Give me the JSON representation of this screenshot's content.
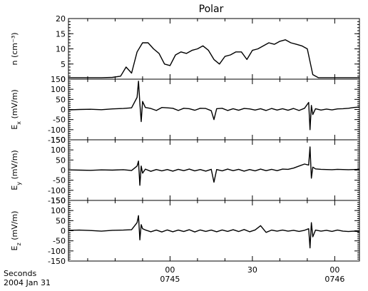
{
  "chart_data": {
    "type": "line",
    "title": "Polar",
    "x_ticks": [
      {
        "top": "00",
        "bottom": "0745",
        "t": 0
      },
      {
        "top": "30",
        "bottom": "",
        "t": 30
      },
      {
        "top": "00",
        "bottom": "0746",
        "t": 60
      }
    ],
    "x_corner_label_top": "Seconds",
    "x_corner_label_bottom": "2004 Jan 31",
    "xlim": [
      -37,
      69
    ],
    "panels": [
      {
        "id": "n",
        "ylabel_main": "n",
        "ylabel_unit": "(cm⁻³)",
        "ylim": [
          0,
          20
        ],
        "yticks": [
          0,
          5,
          10,
          15,
          20
        ],
        "minor_step": 1,
        "series": {
          "name": "n",
          "x": [
            -37,
            -30,
            -25,
            -21,
            -18,
            -16,
            -14,
            -12,
            -10,
            -8,
            -6,
            -4,
            -2,
            0,
            2,
            4,
            6,
            8,
            10,
            12,
            14,
            16,
            18,
            20,
            22,
            24,
            26,
            28,
            30,
            32,
            34,
            36,
            38,
            40,
            42,
            44,
            46,
            48,
            50,
            52,
            54,
            55,
            57,
            59,
            61,
            63,
            65,
            67,
            69
          ],
          "y": [
            0.5,
            0.5,
            0.5,
            0.6,
            1.0,
            4.0,
            2.0,
            9.0,
            12.0,
            12.0,
            10.0,
            8.5,
            5.0,
            4.5,
            8.0,
            9.0,
            8.5,
            9.5,
            10.0,
            11.0,
            9.5,
            6.5,
            5.0,
            7.5,
            8.0,
            9.0,
            9.0,
            6.5,
            9.5,
            10.0,
            11.0,
            12.0,
            11.5,
            12.5,
            13.0,
            12.0,
            11.5,
            11.0,
            10.0,
            1.5,
            0.5,
            0.5,
            0.5,
            0.5,
            0.5,
            0.5,
            0.5,
            0.5,
            0.5
          ]
        }
      },
      {
        "id": "ex",
        "ylabel_main": "E",
        "ylabel_sub": "x",
        "ylabel_unit": "(mV/m)",
        "ylim": [
          -150,
          150
        ],
        "yticks": [
          -150,
          -100,
          -50,
          0,
          50,
          100,
          150
        ],
        "minor_step": 10,
        "series": {
          "name": "Ex",
          "x": [
            -37,
            -33,
            -29,
            -25,
            -21,
            -17,
            -14,
            -12,
            -11.5,
            -11,
            -10.5,
            -10,
            -9,
            -7,
            -5,
            -3,
            -1,
            1,
            3,
            5,
            7,
            9,
            11,
            13,
            15,
            16,
            17,
            19,
            21,
            23,
            25,
            27,
            29,
            31,
            33,
            35,
            37,
            39,
            41,
            43,
            45,
            47,
            49,
            50.5,
            51,
            51.5,
            52,
            53,
            55,
            57,
            59,
            61,
            63,
            65,
            67,
            69
          ],
          "y": [
            -2,
            0,
            1,
            -1,
            3,
            5,
            8,
            60,
            140,
            30,
            -60,
            40,
            10,
            5,
            -5,
            10,
            8,
            6,
            -5,
            6,
            4,
            -4,
            6,
            5,
            -6,
            -50,
            4,
            6,
            -5,
            4,
            -4,
            5,
            3,
            -3,
            4,
            -5,
            5,
            -3,
            4,
            -4,
            5,
            -5,
            6,
            35,
            -100,
            20,
            -25,
            4,
            -3,
            2,
            -2,
            3,
            4,
            6,
            10,
            12
          ]
        }
      },
      {
        "id": "ey",
        "ylabel_main": "E",
        "ylabel_sub": "y",
        "ylabel_unit": "(mV/m)",
        "ylim": [
          -150,
          150
        ],
        "yticks": [
          -150,
          -100,
          -50,
          0,
          50,
          100,
          150
        ],
        "minor_step": 10,
        "series": {
          "name": "Ey",
          "x": [
            -37,
            -33,
            -29,
            -25,
            -21,
            -17,
            -14,
            -12,
            -11.5,
            -11,
            -10.5,
            -10,
            -9,
            -7,
            -5,
            -3,
            -1,
            1,
            3,
            5,
            7,
            9,
            11,
            13,
            15,
            16,
            17,
            19,
            21,
            23,
            25,
            27,
            29,
            31,
            33,
            35,
            37,
            39,
            41,
            43,
            45,
            47,
            49,
            50.5,
            51,
            51.5,
            52,
            53,
            55,
            57,
            59,
            61,
            63,
            65,
            67,
            69
          ],
          "y": [
            1,
            0,
            -1,
            1,
            0,
            2,
            -2,
            20,
            45,
            -75,
            20,
            -15,
            5,
            -6,
            3,
            -4,
            3,
            -5,
            4,
            -3,
            5,
            -4,
            3,
            -5,
            4,
            -60,
            3,
            -4,
            5,
            -3,
            4,
            -5,
            3,
            -4,
            5,
            -3,
            4,
            -3,
            5,
            4,
            10,
            20,
            30,
            25,
            115,
            -40,
            15,
            6,
            4,
            3,
            2,
            4,
            3,
            2,
            3,
            4
          ]
        }
      },
      {
        "id": "ez",
        "ylabel_main": "E",
        "ylabel_sub": "z",
        "ylabel_unit": "(mV/m)",
        "ylim": [
          -150,
          150
        ],
        "yticks": [
          -150,
          -100,
          -50,
          0,
          50,
          100,
          150
        ],
        "minor_step": 10,
        "series": {
          "name": "Ez",
          "x": [
            -37,
            -33,
            -29,
            -25,
            -21,
            -17,
            -14,
            -12,
            -11.5,
            -11,
            -10.5,
            -10,
            -9,
            -7,
            -5,
            -3,
            -1,
            1,
            3,
            5,
            7,
            9,
            11,
            13,
            15,
            17,
            19,
            21,
            23,
            25,
            27,
            29,
            31,
            33,
            35,
            37,
            39,
            41,
            43,
            45,
            47,
            49,
            50.5,
            51,
            51.5,
            52,
            53,
            55,
            57,
            59,
            61,
            63,
            65,
            67,
            69
          ],
          "y": [
            2,
            3,
            1,
            -2,
            2,
            3,
            5,
            40,
            75,
            -45,
            30,
            10,
            4,
            -5,
            3,
            -6,
            4,
            -5,
            3,
            -4,
            5,
            -6,
            4,
            -3,
            3,
            -5,
            4,
            -3,
            5,
            -4,
            6,
            -5,
            4,
            25,
            -8,
            3,
            -2,
            3,
            -2,
            2,
            -3,
            2,
            10,
            -85,
            40,
            -30,
            3,
            -2,
            2,
            -3,
            3,
            -2,
            -4,
            -2,
            -5
          ]
        }
      }
    ]
  }
}
